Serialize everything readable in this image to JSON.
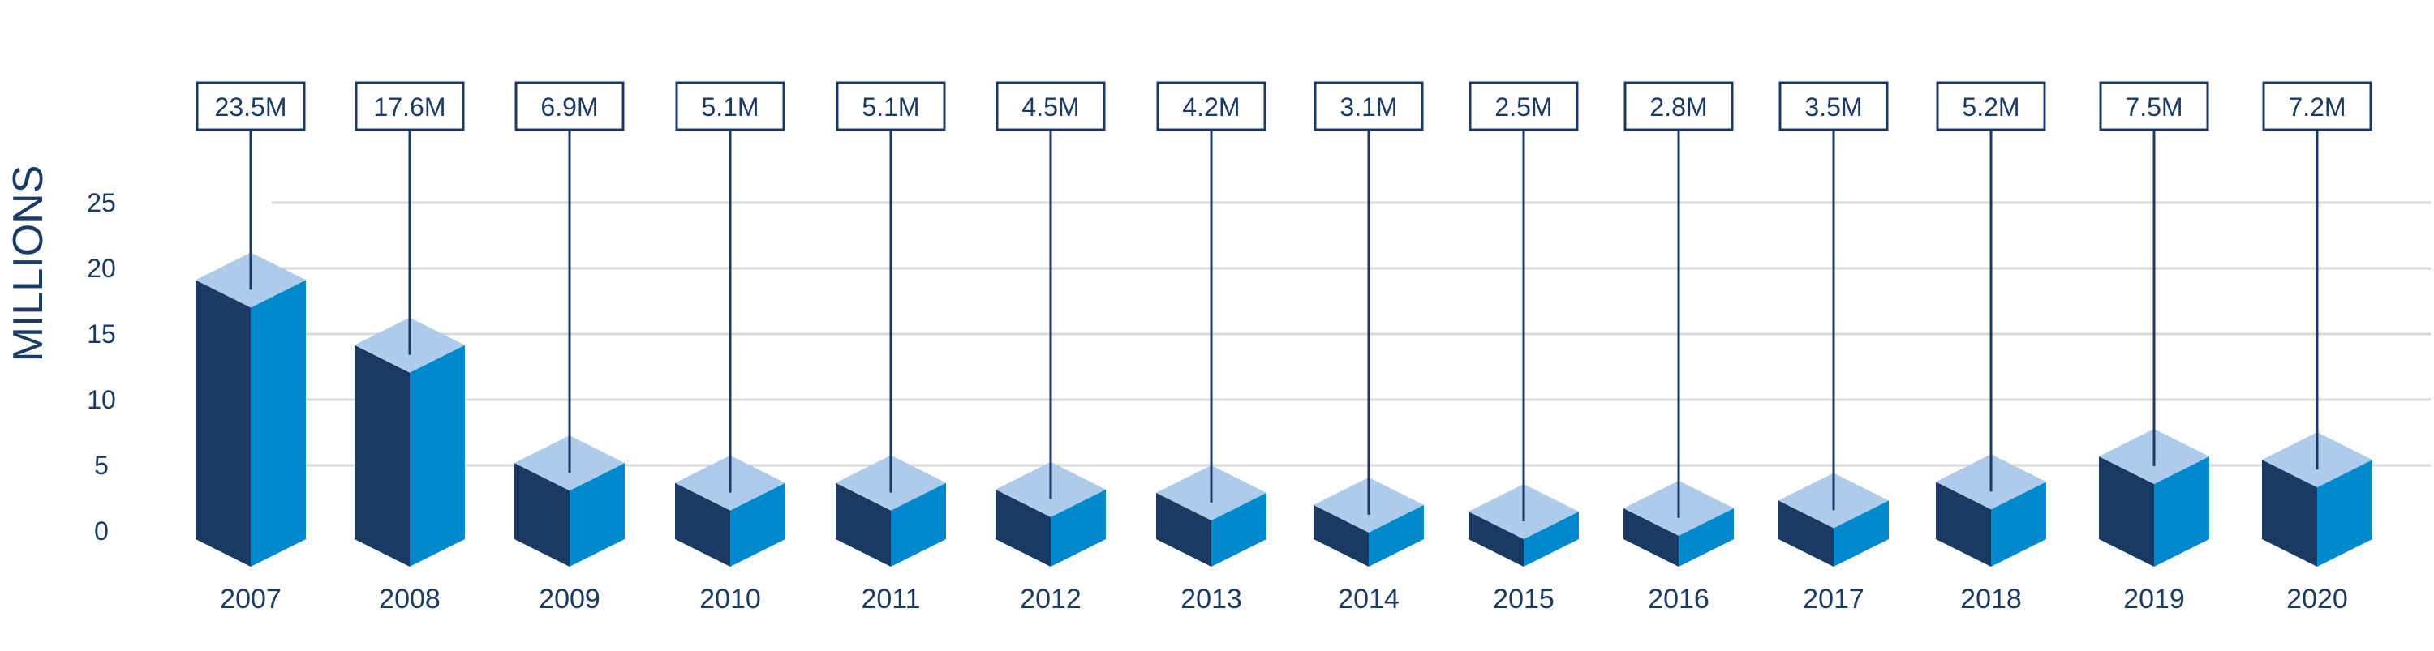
{
  "chart_data": {
    "type": "bar",
    "ylabel": "MILLIONS",
    "ylim": [
      0,
      25
    ],
    "yticks": [
      "0",
      "5",
      "10",
      "15",
      "20",
      "25"
    ],
    "grid": true,
    "categories": [
      "2007",
      "2008",
      "2009",
      "2010",
      "2011",
      "2012",
      "2013",
      "2014",
      "2015",
      "2016",
      "2017",
      "2018",
      "2019",
      "2020"
    ],
    "values": [
      23.5,
      17.6,
      6.9,
      5.1,
      5.1,
      4.5,
      4.2,
      3.1,
      2.5,
      2.8,
      3.5,
      5.2,
      7.5,
      7.2
    ],
    "value_labels": [
      "23.5M",
      "17.6M",
      "6.9M",
      "5.1M",
      "5.1M",
      "4.5M",
      "4.2M",
      "3.1M",
      "2.5M",
      "2.8M",
      "3.5M",
      "5.2M",
      "7.5M",
      "7.2M"
    ],
    "colors": {
      "left_face": "#1b3a63",
      "right_face": "#0088cc",
      "top_face": "#aecbeb",
      "gridline": "#d9d9d9",
      "text": "#1b3a63"
    }
  }
}
